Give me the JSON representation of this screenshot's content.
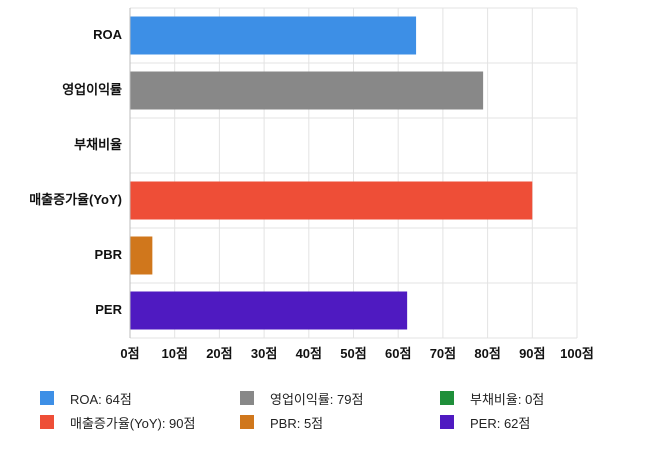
{
  "chart_data": {
    "type": "bar",
    "orientation": "horizontal",
    "categories": [
      "ROA",
      "영업이익률",
      "부채비율",
      "매출증가율(YoY)",
      "PBR",
      "PER"
    ],
    "values": [
      64,
      79,
      0,
      90,
      5,
      62
    ],
    "colors": [
      "#3d8fe6",
      "#888888",
      "#1f8f3a",
      "#ee4e37",
      "#d0771c",
      "#4f1ac1"
    ],
    "xlim": [
      0,
      100
    ],
    "xticks": [
      0,
      10,
      20,
      30,
      40,
      50,
      60,
      70,
      80,
      90,
      100
    ],
    "tick_labels": [
      "0점",
      "10점",
      "20점",
      "30점",
      "40점",
      "50점",
      "60점",
      "70점",
      "80점",
      "90점",
      "100점"
    ],
    "grid": true,
    "legend_position": "bottom",
    "legend": [
      {
        "label": "ROA: 64점",
        "color": "#3d8fe6"
      },
      {
        "label": "영업이익률: 79점",
        "color": "#888888"
      },
      {
        "label": "부채비율: 0점",
        "color": "#1f8f3a"
      },
      {
        "label": "매출증가율(YoY): 90점",
        "color": "#ee4e37"
      },
      {
        "label": "PBR: 5점",
        "color": "#d0771c"
      },
      {
        "label": "PER: 62점",
        "color": "#4f1ac1"
      }
    ]
  }
}
